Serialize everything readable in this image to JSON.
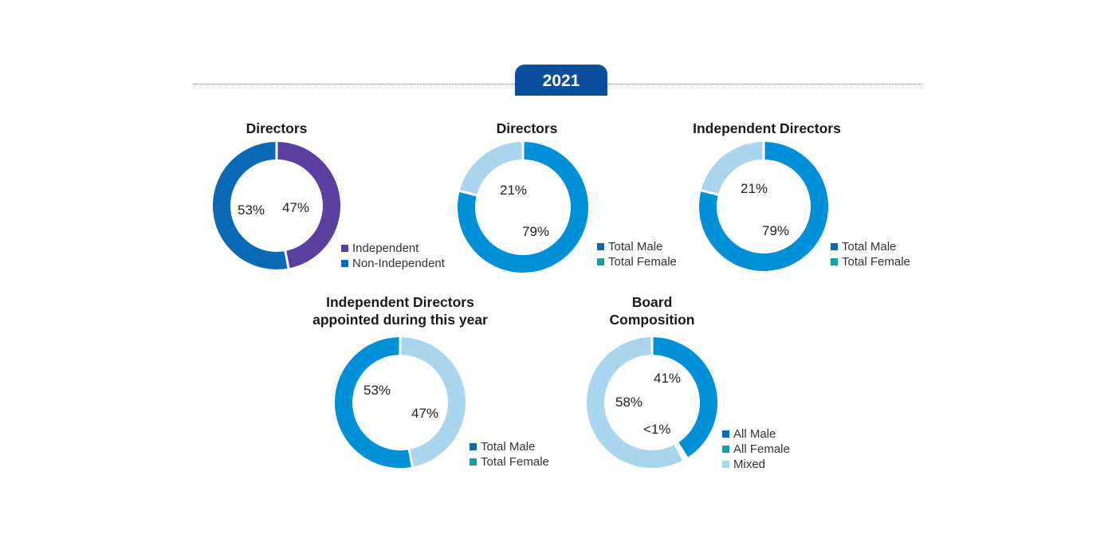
{
  "header": {
    "year": "2021"
  },
  "colors": {
    "purple": "#5b3f9e",
    "dark_blue": "#0a6ab6",
    "mid_blue": "#0090d8",
    "light_blue": "#a9d5ee",
    "teal": "#12a0a0",
    "tab_blue": "#0a4f9e"
  },
  "chart_data": [
    {
      "type": "pie",
      "title": "Directors",
      "categories": [
        "Independent",
        "Non-Independent"
      ],
      "values": [
        47,
        53
      ],
      "labels": [
        "47%",
        "53%"
      ],
      "slice_colors": [
        "#5b3f9e",
        "#0a6ab6"
      ],
      "legend": [
        {
          "label": "Independent",
          "color": "#5b3f9e"
        },
        {
          "label": "Non-Independent",
          "color": "#0a6ab6"
        }
      ]
    },
    {
      "type": "pie",
      "title": "Directors",
      "categories": [
        "Total Male",
        "Total Female"
      ],
      "values": [
        79,
        21
      ],
      "labels": [
        "79%",
        "21%"
      ],
      "slice_colors": [
        "#0090d8",
        "#a9d5ee"
      ],
      "legend": [
        {
          "label": "Total Male",
          "color": "#0a6ab6"
        },
        {
          "label": "Total Female",
          "color": "#12a0a0"
        }
      ]
    },
    {
      "type": "pie",
      "title": "Independent Directors",
      "categories": [
        "Total Male",
        "Total Female"
      ],
      "values": [
        79,
        21
      ],
      "labels": [
        "79%",
        "21%"
      ],
      "slice_colors": [
        "#0090d8",
        "#a9d5ee"
      ],
      "legend": [
        {
          "label": "Total Male",
          "color": "#0a6ab6"
        },
        {
          "label": "Total Female",
          "color": "#12a0a0"
        }
      ]
    },
    {
      "type": "pie",
      "title_lines": [
        "Independent Directors",
        "appointed during this year"
      ],
      "categories": [
        "Total Female",
        "Total Male"
      ],
      "values": [
        47,
        53
      ],
      "labels": [
        "47%",
        "53%"
      ],
      "slice_colors": [
        "#a9d5ee",
        "#0090d8"
      ],
      "legend": [
        {
          "label": "Total Male",
          "color": "#0a6ab6"
        },
        {
          "label": "Total Female",
          "color": "#12a0a0"
        }
      ]
    },
    {
      "type": "pie",
      "title_lines": [
        "Board",
        "Composition"
      ],
      "categories": [
        "All Male",
        "All Female",
        "Mixed"
      ],
      "values": [
        41,
        1,
        58
      ],
      "labels": [
        "41%",
        "<1%",
        "58%"
      ],
      "slice_colors": [
        "#0090d8",
        "#ffffff",
        "#a9d5ee"
      ],
      "legend": [
        {
          "label": "All Male",
          "color": "#0a6ab6"
        },
        {
          "label": "All Female",
          "color": "#12a0a0"
        },
        {
          "label": "Mixed",
          "color": "#a9d5ee"
        }
      ]
    }
  ]
}
